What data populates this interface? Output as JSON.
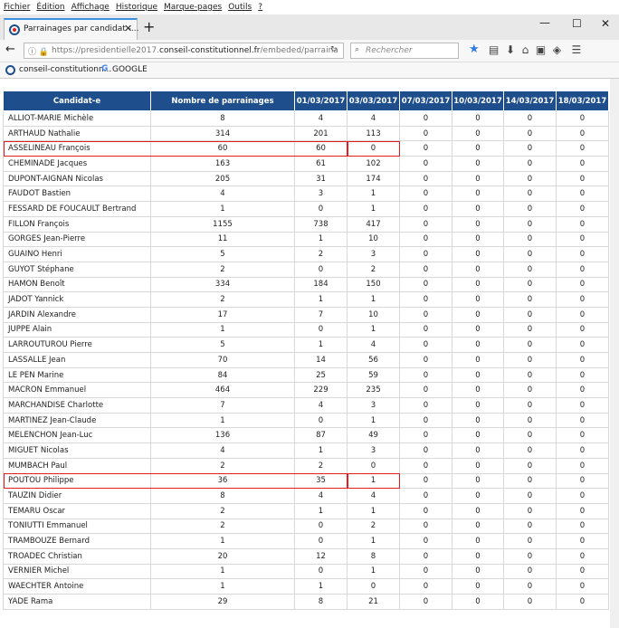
{
  "browser": {
    "menu": [
      "Fichier",
      "Édition",
      "Affichage",
      "Historique",
      "Marque-pages",
      "Outils",
      "?"
    ],
    "tab_title": "Parrainages par candidat -...",
    "url_prefix": "https://presidentielle2017.",
    "url_domain": "conseil-constitutionnel.fr",
    "url_path": "/embeded/parraina",
    "search_placeholder": "Rechercher",
    "bookmarks": [
      "conseil-constitutionn...",
      "GOOGLE"
    ]
  },
  "table": {
    "headers": [
      "Candidat-e",
      "Nombre de parrainages",
      "01/03/2017",
      "03/03/2017",
      "07/03/2017",
      "10/03/2017",
      "14/03/2017",
      "18/03/2017"
    ],
    "highlighted_rows": [
      2,
      24
    ],
    "rows": [
      [
        "ALLIOT-MARIE Michèle",
        8,
        4,
        4,
        0,
        0,
        0,
        0
      ],
      [
        "ARTHAUD Nathalie",
        314,
        201,
        113,
        0,
        0,
        0,
        0
      ],
      [
        "ASSELINEAU François",
        60,
        60,
        0,
        0,
        0,
        0,
        0
      ],
      [
        "CHEMINADE Jacques",
        163,
        61,
        102,
        0,
        0,
        0,
        0
      ],
      [
        "DUPONT-AIGNAN Nicolas",
        205,
        31,
        174,
        0,
        0,
        0,
        0
      ],
      [
        "FAUDOT Bastien",
        4,
        3,
        1,
        0,
        0,
        0,
        0
      ],
      [
        "FESSARD DE FOUCAULT Bertrand",
        1,
        0,
        1,
        0,
        0,
        0,
        0
      ],
      [
        "FILLON François",
        1155,
        738,
        417,
        0,
        0,
        0,
        0
      ],
      [
        "GORGES Jean-Pierre",
        11,
        1,
        10,
        0,
        0,
        0,
        0
      ],
      [
        "GUAINO Henri",
        5,
        2,
        3,
        0,
        0,
        0,
        0
      ],
      [
        "GUYOT Stéphane",
        2,
        0,
        2,
        0,
        0,
        0,
        0
      ],
      [
        "HAMON Benoît",
        334,
        184,
        150,
        0,
        0,
        0,
        0
      ],
      [
        "JADOT Yannick",
        2,
        1,
        1,
        0,
        0,
        0,
        0
      ],
      [
        "JARDIN Alexandre",
        17,
        7,
        10,
        0,
        0,
        0,
        0
      ],
      [
        "JUPPE Alain",
        1,
        0,
        1,
        0,
        0,
        0,
        0
      ],
      [
        "LARROUTUROU Pierre",
        5,
        1,
        4,
        0,
        0,
        0,
        0
      ],
      [
        "LASSALLE Jean",
        70,
        14,
        56,
        0,
        0,
        0,
        0
      ],
      [
        "LE PEN Marine",
        84,
        25,
        59,
        0,
        0,
        0,
        0
      ],
      [
        "MACRON Emmanuel",
        464,
        229,
        235,
        0,
        0,
        0,
        0
      ],
      [
        "MARCHANDISE Charlotte",
        7,
        4,
        3,
        0,
        0,
        0,
        0
      ],
      [
        "MARTINEZ Jean-Claude",
        1,
        0,
        1,
        0,
        0,
        0,
        0
      ],
      [
        "MELENCHON Jean-Luc",
        136,
        87,
        49,
        0,
        0,
        0,
        0
      ],
      [
        "MIGUET Nicolas",
        4,
        1,
        3,
        0,
        0,
        0,
        0
      ],
      [
        "MUMBACH Paul",
        2,
        2,
        0,
        0,
        0,
        0,
        0
      ],
      [
        "POUTOU Philippe",
        36,
        35,
        1,
        0,
        0,
        0,
        0
      ],
      [
        "TAUZIN Didier",
        8,
        4,
        4,
        0,
        0,
        0,
        0
      ],
      [
        "TEMARU Oscar",
        2,
        1,
        1,
        0,
        0,
        0,
        0
      ],
      [
        "TONIUTTI Emmanuel",
        2,
        0,
        2,
        0,
        0,
        0,
        0
      ],
      [
        "TRAMBOUZE Bernard",
        1,
        0,
        1,
        0,
        0,
        0,
        0
      ],
      [
        "TROADEC Christian",
        20,
        12,
        8,
        0,
        0,
        0,
        0
      ],
      [
        "VERNIER Michel",
        1,
        0,
        1,
        0,
        0,
        0,
        0
      ],
      [
        "WAECHTER Antoine",
        1,
        1,
        0,
        0,
        0,
        0,
        0
      ],
      [
        "YADE Rama",
        29,
        8,
        21,
        0,
        0,
        0,
        0
      ]
    ]
  }
}
